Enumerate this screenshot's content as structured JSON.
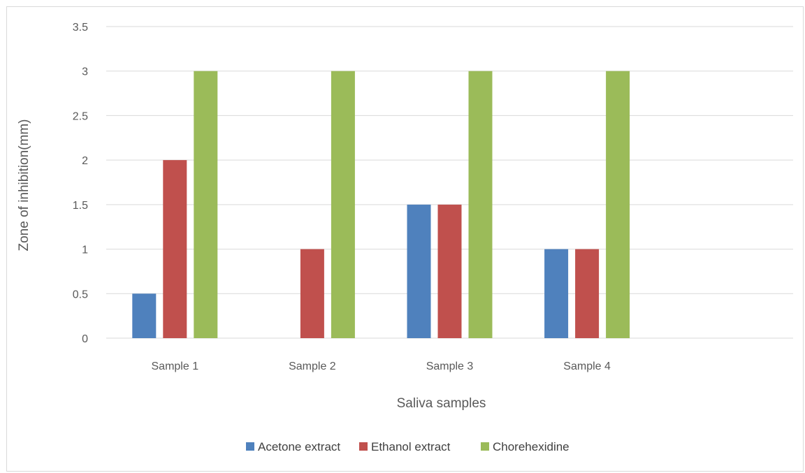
{
  "chart_data": {
    "type": "bar",
    "categories": [
      "Sample 1",
      "Sample 2",
      "Sample 3",
      "Sample 4"
    ],
    "slot_count": 5,
    "series": [
      {
        "name": "Acetone extract",
        "values": [
          0.5,
          0,
          1.5,
          1
        ],
        "color": "#4f81bd"
      },
      {
        "name": "Ethanol extract",
        "values": [
          2,
          1,
          1.5,
          1
        ],
        "color": "#c0504d"
      },
      {
        "name": "Chorehexidine",
        "values": [
          3,
          3,
          3,
          3
        ],
        "color": "#9bbb59"
      }
    ],
    "xlabel": "Saliva samples",
    "ylabel": "Zone of inhibition(mm)",
    "ylim": [
      0,
      3.5
    ],
    "yticks": [
      "0",
      "0.5",
      "1",
      "1.5",
      "2",
      "2.5",
      "3",
      "3.5"
    ],
    "grid": true,
    "legend_position": "bottom",
    "colors": {
      "grid": "#d9d9d9",
      "text": "#595959"
    }
  }
}
